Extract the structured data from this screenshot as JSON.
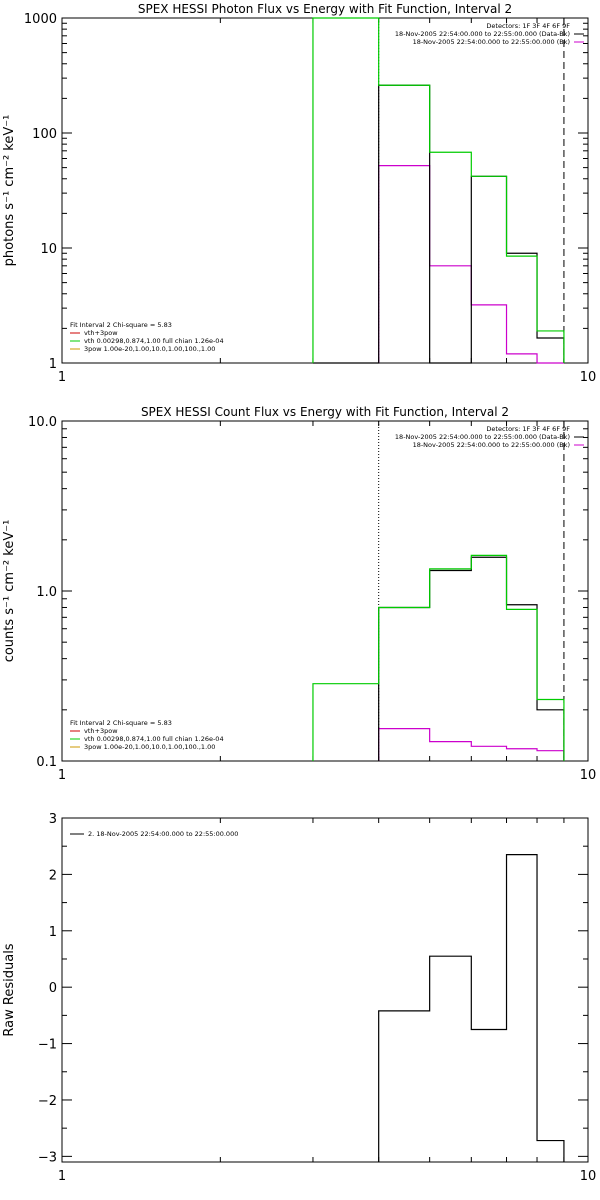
{
  "colors": {
    "observed": "#000000",
    "model_total": "#00cc00",
    "model_bk": "#cc00cc",
    "legend_spex": "#cc9900",
    "legend_vth": "#00cc00",
    "legend_sum": "#cc0000"
  },
  "chart_data": [
    {
      "type": "line",
      "title": "SPEX HESSI Photon Flux vs Energy with Fit Function, Interval 2",
      "xlabel": "",
      "ylabel": "photons s⁻¹ cm⁻² keV⁻¹",
      "x_scale": "log",
      "y_scale": "log",
      "xlim": [
        1,
        10
      ],
      "ylim": [
        1,
        1000
      ],
      "x_ticks": [
        1,
        10
      ],
      "y_ticks": [
        1,
        10,
        100,
        1000
      ],
      "y_tick_labels": [
        "1",
        "10",
        "100",
        "1000"
      ],
      "grid": false,
      "dash_line_x": 9.0,
      "dot_line_x": 4.0,
      "header": [
        "Detectors: 1F 3F 4F 6F 9F",
        "18-Nov-2005 22:54:00.000 to 22:55:00.000 (Data-Bk)",
        "18-Nov-2005 22:54:00.000 to 22:55:00.000 (Bk)"
      ],
      "legend": [
        "Fit Interval 2   Chi-square = 5.83",
        "vth+3pow",
        "vth 0.00298,0.874,1.00  full chian 1.26e-04",
        "3pow 1.00e-20,1.00,10.0,1.00,100.,1.00"
      ],
      "series": [
        {
          "name": "Data-Bk",
          "edges": [
            3.0,
            4.0,
            5.0,
            6.0,
            7.0,
            8.0,
            9.0
          ],
          "values": [
            0,
            260,
            0,
            42,
            9,
            1.65
          ]
        },
        {
          "name": "",
          "edges": [
            3.0,
            4.0,
            5.0,
            6.0,
            7.0,
            8.0,
            9.0
          ],
          "values": [
            1000,
            260,
            68,
            42,
            8.5,
            1.9
          ]
        },
        {
          "name": "Bk",
          "edges": [
            4.0,
            5.0,
            6.0,
            7.0,
            8.0,
            9.0
          ],
          "values": [
            52,
            7,
            3.2,
            1.2,
            1.0
          ]
        }
      ]
    },
    {
      "type": "line",
      "title": "SPEX HESSI Count Flux vs Energy with Fit Function, Interval 2",
      "xlabel": "",
      "ylabel": "counts s⁻¹ cm⁻² keV⁻¹",
      "x_scale": "log",
      "y_scale": "log",
      "xlim": [
        1,
        10
      ],
      "ylim": [
        0.1,
        10
      ],
      "x_ticks": [
        1,
        10
      ],
      "y_ticks": [
        0.1,
        1,
        10
      ],
      "y_tick_labels": [
        "0.1",
        "1.0",
        "10.0"
      ],
      "grid": false,
      "dash_line_x": 9.0,
      "dot_line_x": 4.0,
      "header": [
        "Detectors: 1F 3F 4F 6F 9F",
        "18-Nov-2005 22:54:00.000 to 22:55:00.000 (Data-Bk)",
        "18-Nov-2005 22:54:00.000 to 22:55:00.000 (Bk)"
      ],
      "legend": [
        "Fit Interval 2   Chi-square = 5.83",
        "vth+3pow",
        "vth 0.00298,0.874,1.00  full chian 1.26e-04",
        "3pow 1.00e-20,1.00,10.0,1.00,100.,1.00"
      ],
      "series": [
        {
          "name": "Data-Bk",
          "edges": [
            4.0,
            5.0,
            6.0,
            7.0,
            8.0,
            9.0
          ],
          "values": [
            0.8,
            1.32,
            1.58,
            0.83,
            0.2
          ]
        },
        {
          "name": "",
          "edges": [
            3.0,
            4.0,
            5.0,
            6.0,
            7.0,
            8.0,
            9.0
          ],
          "values": [
            0.285,
            0.8,
            1.35,
            1.62,
            0.78,
            0.23
          ]
        },
        {
          "name": "Bk",
          "edges": [
            4.0,
            5.0,
            6.0,
            7.0,
            8.0,
            9.0
          ],
          "values": [
            0.155,
            0.13,
            0.122,
            0.118,
            0.115
          ]
        }
      ]
    },
    {
      "type": "line",
      "title": "",
      "xlabel": "",
      "ylabel": "Raw Residuals",
      "x_scale": "log",
      "y_scale": "linear",
      "xlim": [
        1,
        10
      ],
      "ylim": [
        -3.1,
        3
      ],
      "x_ticks": [
        1,
        10
      ],
      "y_ticks": [
        -3,
        -2,
        -1,
        0,
        1,
        2,
        3
      ],
      "y_tick_labels": [
        "−3",
        "−2",
        "−1",
        "0",
        "1",
        "2",
        "3"
      ],
      "grid": false,
      "legend": [
        "2. 18-Nov-2005 22:54:00.000 to 22:55:00.000"
      ],
      "series": [
        {
          "name": "2. 18-Nov-2005 22:54:00.000 to 22:55:00.000",
          "edges": [
            4.0,
            5.0,
            6.0,
            7.0,
            8.0,
            9.0
          ],
          "values": [
            -0.42,
            0.55,
            -0.75,
            2.35,
            -2.72
          ]
        }
      ]
    }
  ]
}
